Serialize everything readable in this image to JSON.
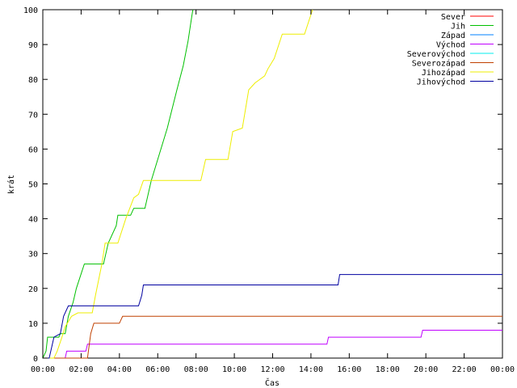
{
  "chart_data": {
    "type": "line",
    "xlabel": "Čas",
    "ylabel": "krát",
    "xlim": [
      "00:00",
      "24:00"
    ],
    "ylim": [
      0,
      100
    ],
    "x_ticks": [
      "00:00",
      "02:00",
      "04:00",
      "06:00",
      "08:00",
      "10:00",
      "12:00",
      "14:00",
      "16:00",
      "18:00",
      "20:00",
      "22:00",
      "00:00"
    ],
    "y_ticks": [
      0,
      10,
      20,
      30,
      40,
      50,
      60,
      70,
      80,
      90,
      100
    ],
    "grid": false,
    "legend_position": "top-right",
    "series": [
      {
        "name": "Sever",
        "color": "#ff0000",
        "points": []
      },
      {
        "name": "Jih",
        "color": "#00c000",
        "points": [
          [
            "00:00",
            0
          ],
          [
            "00:10",
            2
          ],
          [
            "00:15",
            6
          ],
          [
            "00:50",
            6
          ],
          [
            "00:55",
            7
          ],
          [
            "01:10",
            7
          ],
          [
            "01:20",
            12
          ],
          [
            "01:35",
            16
          ],
          [
            "01:45",
            20
          ],
          [
            "02:10",
            27
          ],
          [
            "03:10",
            27
          ],
          [
            "03:25",
            33
          ],
          [
            "03:50",
            38
          ],
          [
            "03:55",
            41
          ],
          [
            "04:35",
            41
          ],
          [
            "04:45",
            43
          ],
          [
            "05:20",
            43
          ],
          [
            "05:40",
            51
          ],
          [
            "06:30",
            66
          ],
          [
            "07:00",
            77
          ],
          [
            "07:20",
            84
          ],
          [
            "07:35",
            91
          ],
          [
            "07:45",
            97
          ],
          [
            "07:50",
            100
          ]
        ]
      },
      {
        "name": "Západ",
        "color": "#0080ff",
        "points": []
      },
      {
        "name": "Východ",
        "color": "#c000ff",
        "points": [
          [
            "00:00",
            0
          ],
          [
            "01:10",
            0
          ],
          [
            "01:15",
            2
          ],
          [
            "02:15",
            2
          ],
          [
            "02:20",
            4
          ],
          [
            "14:50",
            4
          ],
          [
            "14:55",
            6
          ],
          [
            "19:45",
            6
          ],
          [
            "19:50",
            8
          ],
          [
            "24:00",
            8
          ]
        ]
      },
      {
        "name": "Severovýchod",
        "color": "#00eeee",
        "points": []
      },
      {
        "name": "Severozápad",
        "color": "#c04000",
        "points": [
          [
            "00:00",
            0
          ],
          [
            "02:20",
            0
          ],
          [
            "02:30",
            7
          ],
          [
            "02:40",
            10
          ],
          [
            "04:00",
            10
          ],
          [
            "04:10",
            12
          ],
          [
            "24:00",
            12
          ]
        ]
      },
      {
        "name": "Jihozápad",
        "color": "#eeee00",
        "points": [
          [
            "00:00",
            0
          ],
          [
            "00:35",
            0
          ],
          [
            "00:45",
            2
          ],
          [
            "01:00",
            6
          ],
          [
            "01:10",
            9
          ],
          [
            "01:30",
            12
          ],
          [
            "01:50",
            13
          ],
          [
            "02:35",
            13
          ],
          [
            "02:45",
            18
          ],
          [
            "03:05",
            27
          ],
          [
            "03:15",
            33
          ],
          [
            "03:55",
            33
          ],
          [
            "04:20",
            40
          ],
          [
            "04:45",
            46
          ],
          [
            "05:00",
            47
          ],
          [
            "05:15",
            51
          ],
          [
            "08:15",
            51
          ],
          [
            "08:20",
            53
          ],
          [
            "08:30",
            57
          ],
          [
            "09:40",
            57
          ],
          [
            "09:55",
            65
          ],
          [
            "10:25",
            66
          ],
          [
            "10:45",
            77
          ],
          [
            "11:05",
            79
          ],
          [
            "11:35",
            81
          ],
          [
            "11:45",
            83
          ],
          [
            "12:05",
            86
          ],
          [
            "12:30",
            93
          ],
          [
            "13:40",
            93
          ],
          [
            "14:05",
            100
          ]
        ]
      },
      {
        "name": "Jihovýchod",
        "color": "#0000a0",
        "points": [
          [
            "00:00",
            0
          ],
          [
            "00:20",
            0
          ],
          [
            "00:35",
            6
          ],
          [
            "00:55",
            7
          ],
          [
            "01:05",
            12
          ],
          [
            "01:20",
            15
          ],
          [
            "05:00",
            15
          ],
          [
            "05:10",
            18
          ],
          [
            "05:15",
            21
          ],
          [
            "15:25",
            21
          ],
          [
            "15:30",
            24
          ],
          [
            "24:00",
            24
          ]
        ]
      }
    ]
  }
}
